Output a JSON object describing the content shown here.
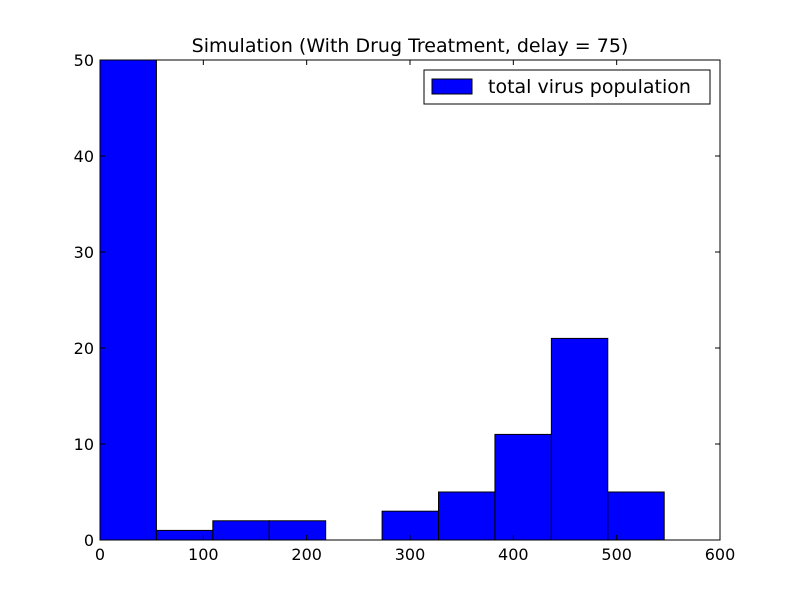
{
  "chart_data": {
    "type": "bar",
    "title": "Simulation (With Drug Treatment, delay = 75)",
    "xlabel": "",
    "ylabel": "",
    "xlim": [
      0,
      600
    ],
    "ylim": [
      0,
      50
    ],
    "xticks": [
      0,
      100,
      200,
      300,
      400,
      500,
      600
    ],
    "yticks": [
      0,
      10,
      20,
      30,
      40,
      50
    ],
    "grid": false,
    "legend_position": "top-right",
    "bar_color": "#0000ff",
    "bin_edges": [
      0,
      54.6,
      109.2,
      163.8,
      218.4,
      273.0,
      327.6,
      382.2,
      436.8,
      491.4,
      546.0
    ],
    "series": [
      {
        "name": "total virus population",
        "values": [
          50,
          1,
          2,
          2,
          0,
          3,
          5,
          11,
          21,
          5
        ]
      }
    ]
  }
}
